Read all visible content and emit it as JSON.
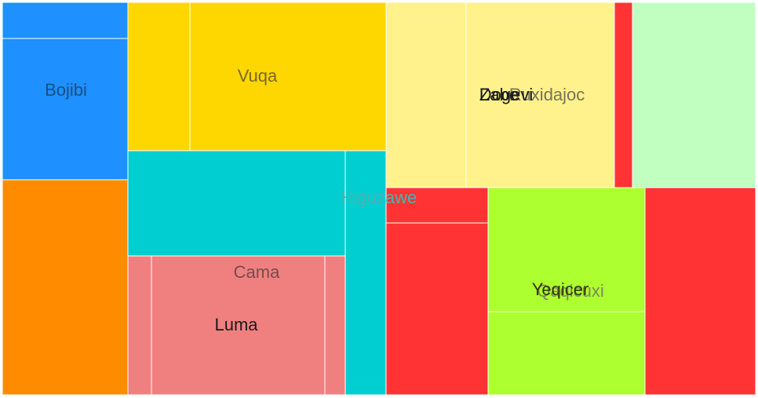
{
  "chart_data": {
    "type": "treemap",
    "colors": {
      "blue": "#1e90ff",
      "orange": "#ff8c00",
      "gold": "#ffd700",
      "cyan": "#00ced1",
      "coral": "#f08080",
      "pale_yellow": "#fff28c",
      "red": "#ff3333",
      "pale_green": "#c0ffc0",
      "lime": "#adff2f"
    },
    "groups": [
      {
        "name": "Bojibi",
        "children": [
          {
            "name": "",
            "value": 21
          },
          {
            "name": "",
            "value": 80
          },
          {
            "name": "",
            "value": 126
          }
        ]
      },
      {
        "name": "Vuqa",
        "children": [
          {
            "name": "",
            "value": 40
          },
          {
            "name": "",
            "value": 123
          }
        ]
      },
      {
        "name": "Higuzawe",
        "children": [
          {
            "name": "",
            "value": 75
          },
          {
            "name": "",
            "value": 38
          }
        ]
      },
      {
        "name": "Cama",
        "children": [
          {
            "name": "",
            "value": 14
          },
          {
            "name": "Luma",
            "value": 88
          },
          {
            "name": "",
            "value": 11
          }
        ]
      },
      {
        "name": "Ruxidajoc",
        "children": [
          {
            "name": "",
            "value": 53
          },
          {
            "name": "Zabe",
            "value": 101
          },
          {
            "name": "Dogevi",
            "value": 0
          },
          {
            "name": "",
            "value": 9
          },
          {
            "name": "",
            "value": 86
          }
        ]
      },
      {
        "name": "Qaqicuxi",
        "children": [
          {
            "name": "",
            "value": 23
          },
          {
            "name": "",
            "value": 101
          },
          {
            "name": "Yeqicer",
            "value": 103
          },
          {
            "name": "",
            "value": 46
          },
          {
            "name": "",
            "value": 74
          }
        ]
      }
    ]
  }
}
